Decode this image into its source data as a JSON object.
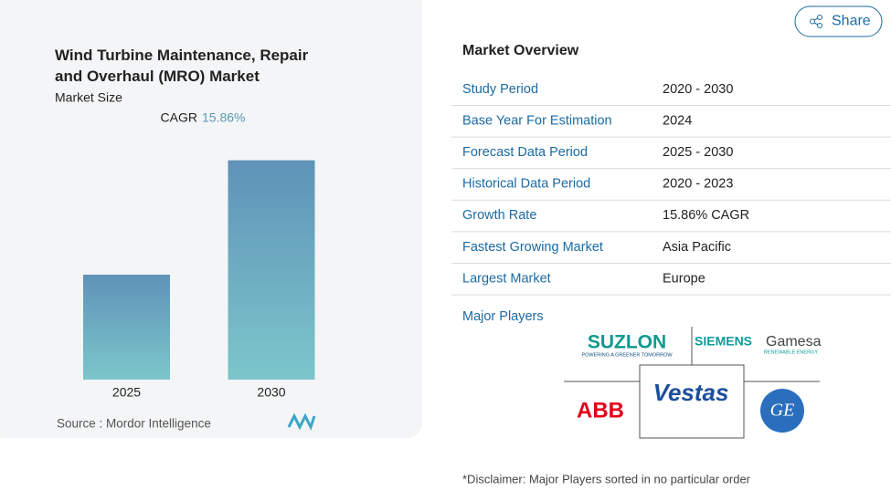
{
  "share": "Share",
  "chart_data": {
    "type": "bar",
    "title": "Wind Turbine Maintenance, Repair and Overhaul (MRO) Market",
    "subtitle": "Market Size",
    "cagr_label": "CAGR",
    "cagr_value": "15.86%",
    "categories": [
      "2025",
      "2030"
    ],
    "values": [
      1,
      2.09
    ],
    "ylim": [
      0,
      2.4
    ],
    "source": "Source :  Mordor Intelligence"
  },
  "overview": {
    "title": "Market Overview",
    "rows": [
      [
        "Study Period",
        "2020 - 2030"
      ],
      [
        "Base Year For Estimation",
        "2024"
      ],
      [
        "Forecast Data Period",
        "2025 - 2030"
      ],
      [
        "Historical Data Period",
        "2020 - 2023"
      ],
      [
        "Growth Rate",
        "15.86% CAGR"
      ],
      [
        "Fastest Growing Market",
        "Asia Pacific"
      ],
      [
        "Largest Market",
        "Europe"
      ]
    ],
    "players_title": "Major Players",
    "players": {
      "suzlon": "SUZLON",
      "suzlon_tag": "POWERING A GREENER TOMORROW",
      "siemens": "SIEMENS",
      "gamesa": "Gamesa",
      "gamesa_tag": "RENEWABLE ENERGY",
      "abb": "ABB",
      "vestas": "Vestas",
      "ge": "GE"
    },
    "disclaimer": "*Disclaimer: Major Players sorted in no particular order"
  }
}
